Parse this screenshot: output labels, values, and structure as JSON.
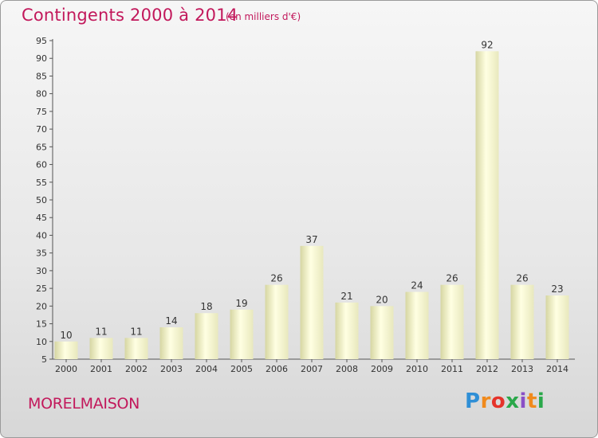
{
  "header": {
    "title": "Contingents 2000 à 2014",
    "subtitle": "(en milliers d'€)"
  },
  "footer": {
    "commune": "MORELMAISON",
    "logo_text": "Proxiti"
  },
  "colors": {
    "accent": "#c2185b",
    "bar_light": "#ffffe0",
    "bar_dark": "#d9d9a6"
  },
  "chart_data": {
    "type": "bar",
    "categories": [
      "2000",
      "2001",
      "2002",
      "2003",
      "2004",
      "2005",
      "2006",
      "2007",
      "2008",
      "2009",
      "2010",
      "2011",
      "2012",
      "2013",
      "2014"
    ],
    "values": [
      10,
      11,
      11,
      14,
      18,
      19,
      26,
      37,
      21,
      20,
      24,
      26,
      92,
      26,
      23
    ],
    "title": "Contingents 2000 à 2014",
    "subtitle": "(en milliers d'€)",
    "ylim": [
      5,
      95
    ],
    "yticks": [
      5,
      10,
      15,
      20,
      25,
      30,
      35,
      40,
      45,
      50,
      55,
      60,
      65,
      70,
      75,
      80,
      85,
      90,
      95
    ],
    "grid": false,
    "legend": "none"
  }
}
